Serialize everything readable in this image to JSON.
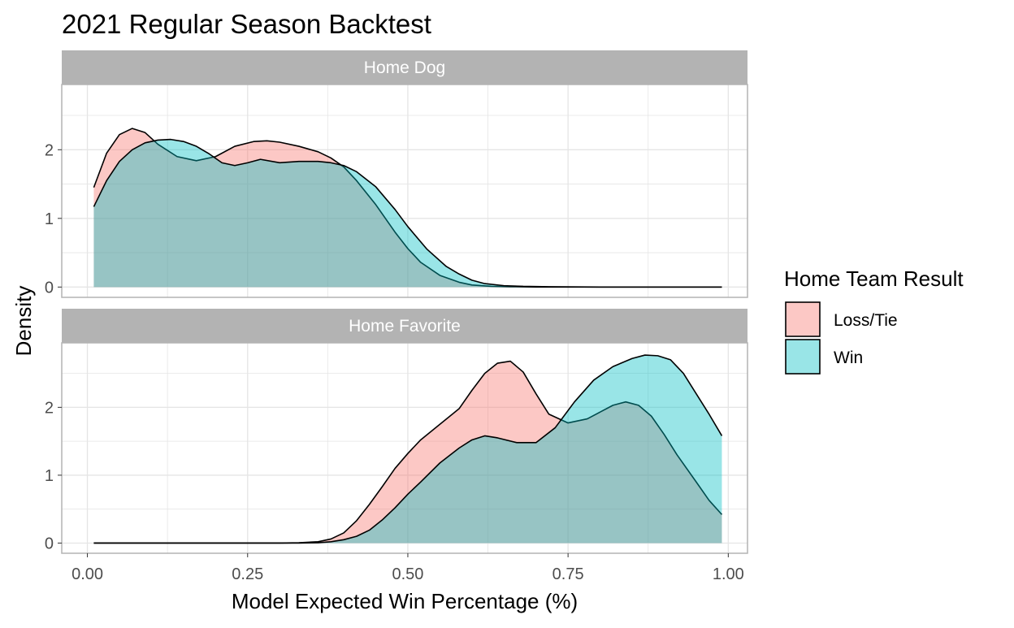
{
  "chart_data": {
    "type": "area",
    "subtype": "density (faceted)",
    "title": "2021 Regular Season Backtest",
    "xlabel": "Model Expected Win Percentage (%)",
    "ylabel": "Density",
    "xlim": [
      -0.04,
      1.03
    ],
    "ylim": [
      -0.15,
      2.95
    ],
    "x_ticks": [
      0.0,
      0.25,
      0.5,
      0.75,
      1.0
    ],
    "x_tick_labels": [
      "0.00",
      "0.25",
      "0.50",
      "0.75",
      "1.00"
    ],
    "y_ticks": [
      0,
      1,
      2
    ],
    "y_tick_labels": [
      "0",
      "1",
      "2"
    ],
    "grid": true,
    "legend": {
      "title": "Home Team Result",
      "position": "right",
      "entries": [
        {
          "label": "Loss/Tie",
          "color": "#F8766D"
        },
        {
          "label": "Win",
          "color": "#00BFC4"
        }
      ]
    },
    "colors": {
      "loss_tie": "#F8766D",
      "win": "#00BFC4",
      "strip_bg": "#B3B3B3",
      "grid": "#E5E5E5",
      "panel_border": "#B3B3B3"
    },
    "fill_opacity": 0.4,
    "facets": [
      {
        "label": "Home Dog",
        "series": [
          {
            "name": "Loss/Tie",
            "x": [
              0.01,
              0.03,
              0.05,
              0.07,
              0.09,
              0.11,
              0.14,
              0.17,
              0.2,
              0.23,
              0.26,
              0.28,
              0.3,
              0.33,
              0.36,
              0.38,
              0.4,
              0.42,
              0.45,
              0.48,
              0.5,
              0.52,
              0.55,
              0.58,
              0.6,
              0.63,
              0.66,
              0.7,
              0.75,
              0.8,
              0.85,
              0.9,
              0.95,
              0.99
            ],
            "y": [
              1.45,
              1.95,
              2.22,
              2.31,
              2.25,
              2.08,
              1.9,
              1.84,
              1.9,
              2.05,
              2.12,
              2.13,
              2.11,
              2.05,
              1.97,
              1.88,
              1.75,
              1.55,
              1.2,
              0.8,
              0.56,
              0.36,
              0.17,
              0.07,
              0.03,
              0.01,
              0.005,
              0.0,
              0.0,
              0.0,
              0.0,
              0.0,
              0.0,
              0.0
            ]
          },
          {
            "name": "Win",
            "x": [
              0.01,
              0.03,
              0.05,
              0.07,
              0.09,
              0.11,
              0.13,
              0.15,
              0.17,
              0.19,
              0.21,
              0.23,
              0.25,
              0.27,
              0.3,
              0.33,
              0.36,
              0.38,
              0.4,
              0.42,
              0.45,
              0.48,
              0.5,
              0.53,
              0.56,
              0.58,
              0.6,
              0.62,
              0.65,
              0.68,
              0.72,
              0.8,
              0.9,
              0.99
            ],
            "y": [
              1.17,
              1.55,
              1.83,
              2.0,
              2.1,
              2.14,
              2.15,
              2.12,
              2.05,
              1.94,
              1.81,
              1.77,
              1.81,
              1.86,
              1.81,
              1.83,
              1.83,
              1.81,
              1.77,
              1.68,
              1.46,
              1.13,
              0.88,
              0.55,
              0.3,
              0.19,
              0.1,
              0.05,
              0.02,
              0.01,
              0.005,
              0.0,
              0.0,
              0.0
            ]
          }
        ]
      },
      {
        "label": "Home Favorite",
        "series": [
          {
            "name": "Loss/Tie",
            "x": [
              0.01,
              0.1,
              0.2,
              0.3,
              0.33,
              0.36,
              0.38,
              0.4,
              0.42,
              0.44,
              0.46,
              0.48,
              0.5,
              0.52,
              0.55,
              0.58,
              0.6,
              0.62,
              0.64,
              0.66,
              0.68,
              0.7,
              0.72,
              0.75,
              0.78,
              0.8,
              0.82,
              0.84,
              0.86,
              0.88,
              0.9,
              0.92,
              0.95,
              0.97,
              0.99
            ],
            "y": [
              0.0,
              0.0,
              0.0,
              0.0,
              0.005,
              0.02,
              0.06,
              0.15,
              0.33,
              0.57,
              0.83,
              1.1,
              1.32,
              1.52,
              1.75,
              1.98,
              2.25,
              2.5,
              2.65,
              2.68,
              2.52,
              2.2,
              1.9,
              1.77,
              1.83,
              1.93,
              2.03,
              2.08,
              2.03,
              1.87,
              1.6,
              1.3,
              0.9,
              0.63,
              0.42
            ]
          },
          {
            "name": "Win",
            "x": [
              0.01,
              0.1,
              0.2,
              0.3,
              0.33,
              0.36,
              0.38,
              0.4,
              0.42,
              0.44,
              0.46,
              0.48,
              0.5,
              0.52,
              0.55,
              0.58,
              0.6,
              0.62,
              0.64,
              0.67,
              0.7,
              0.73,
              0.76,
              0.79,
              0.82,
              0.85,
              0.87,
              0.89,
              0.91,
              0.93,
              0.95,
              0.97,
              0.99
            ],
            "y": [
              0.0,
              0.0,
              0.0,
              0.0,
              0.0,
              0.005,
              0.02,
              0.05,
              0.1,
              0.19,
              0.34,
              0.52,
              0.72,
              0.9,
              1.18,
              1.4,
              1.52,
              1.58,
              1.55,
              1.48,
              1.48,
              1.7,
              2.08,
              2.4,
              2.6,
              2.72,
              2.77,
              2.76,
              2.7,
              2.5,
              2.2,
              1.9,
              1.58
            ]
          }
        ]
      }
    ]
  }
}
